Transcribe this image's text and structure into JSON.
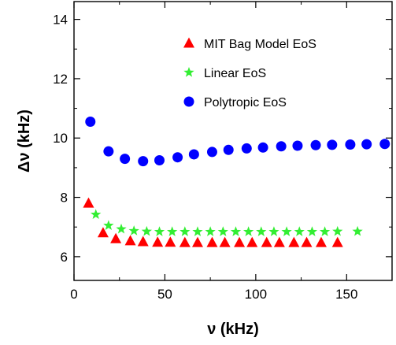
{
  "chart_data": {
    "type": "scatter",
    "title": "",
    "xlabel": "ν (kHz)",
    "ylabel": "Δν (kHz)",
    "xlim": [
      0,
      175
    ],
    "ylim": [
      5.2,
      14.6
    ],
    "xticks": [
      0,
      50,
      100,
      150
    ],
    "yticks": [
      6,
      8,
      10,
      12,
      14
    ],
    "xtick_labels": [
      "0",
      "50",
      "100",
      "150"
    ],
    "ytick_labels": [
      "6",
      "8",
      "10",
      "12",
      "14"
    ],
    "grid": false,
    "legend_position": "top-right",
    "series": [
      {
        "name": "MIT Bag Model EoS",
        "marker": "triangle",
        "color": "#ff0000",
        "x": [
          8,
          16,
          23,
          31,
          38,
          46,
          53,
          61,
          68,
          76,
          83,
          91,
          98,
          106,
          113,
          121,
          128,
          136,
          145
        ],
        "y": [
          7.8,
          6.8,
          6.6,
          6.53,
          6.5,
          6.48,
          6.48,
          6.47,
          6.47,
          6.47,
          6.47,
          6.47,
          6.47,
          6.47,
          6.47,
          6.47,
          6.47,
          6.47,
          6.47
        ]
      },
      {
        "name": "Linear EoS",
        "marker": "star",
        "color": "#33ee33",
        "x": [
          12,
          19,
          26,
          33,
          40,
          47,
          54,
          61,
          68,
          75,
          82,
          89,
          96,
          103,
          110,
          117,
          124,
          131,
          138,
          145,
          156
        ],
        "y": [
          7.42,
          7.05,
          6.93,
          6.87,
          6.85,
          6.84,
          6.84,
          6.84,
          6.84,
          6.84,
          6.84,
          6.84,
          6.84,
          6.84,
          6.84,
          6.84,
          6.84,
          6.84,
          6.84,
          6.85,
          6.85
        ]
      },
      {
        "name": "Polytropic EoS",
        "marker": "circle",
        "color": "#0000ff",
        "x": [
          9,
          19,
          28,
          38,
          47,
          57,
          66,
          76,
          85,
          95,
          104,
          114,
          123,
          133,
          142,
          152,
          161,
          171
        ],
        "y": [
          10.55,
          9.55,
          9.3,
          9.22,
          9.25,
          9.35,
          9.45,
          9.53,
          9.6,
          9.65,
          9.68,
          9.72,
          9.74,
          9.76,
          9.77,
          9.78,
          9.79,
          9.8
        ]
      }
    ]
  }
}
